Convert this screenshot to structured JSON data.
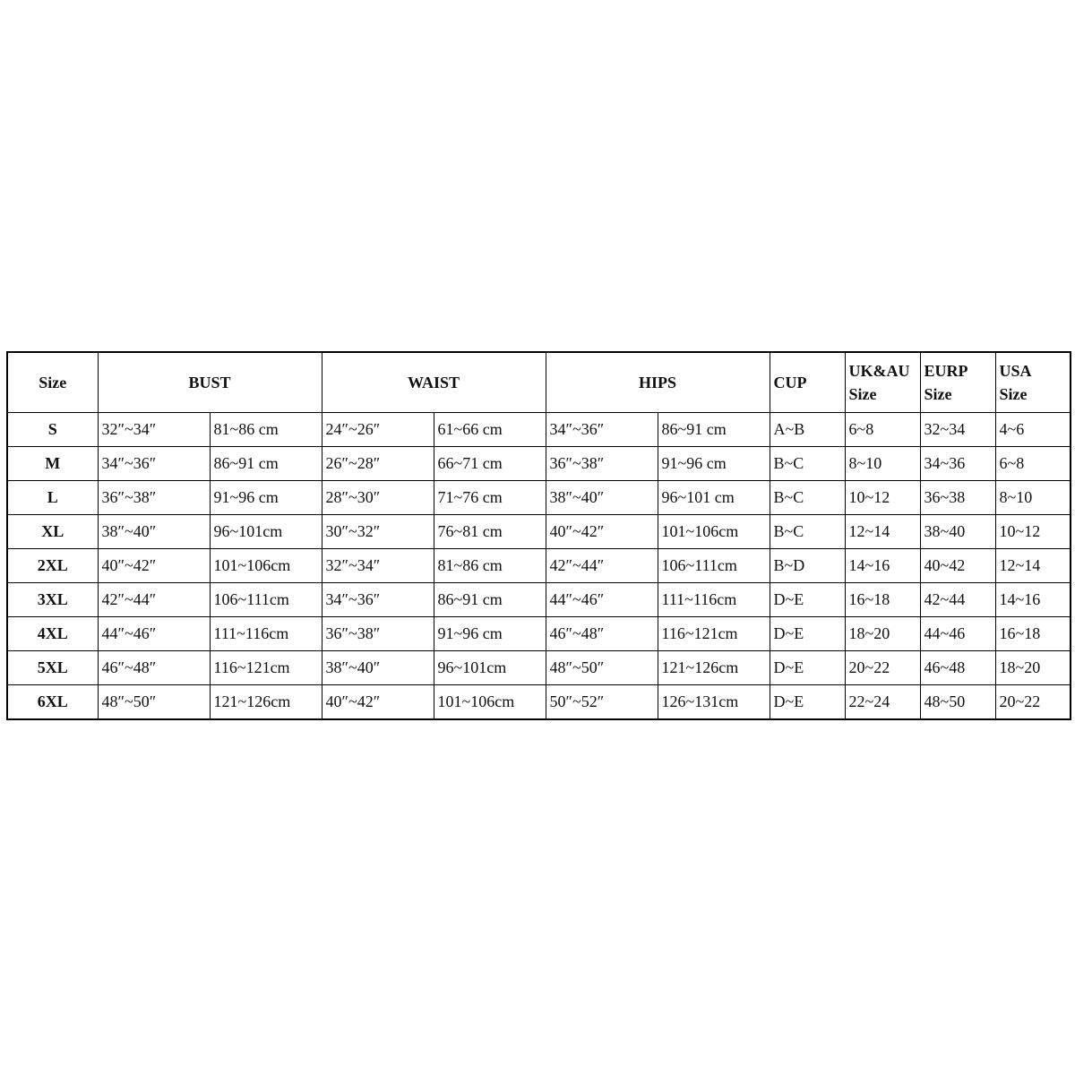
{
  "table": {
    "header": [
      "Size",
      "BUST",
      "WAIST",
      "HIPS",
      "CUP",
      "UK&AU\nSize",
      "EURP\nSize",
      "USA\nSize"
    ],
    "rows": [
      [
        "S",
        "32″~34″",
        "81~86 cm",
        "24″~26″",
        "61~66 cm",
        "34″~36″",
        "86~91 cm",
        "A~B",
        "6~8",
        "32~34",
        "4~6"
      ],
      [
        "M",
        "34″~36″",
        "86~91 cm",
        "26″~28″",
        "66~71 cm",
        "36″~38″",
        "91~96 cm",
        "B~C",
        "8~10",
        "34~36",
        "6~8"
      ],
      [
        "L",
        "36″~38″",
        "91~96 cm",
        "28″~30″",
        "71~76 cm",
        "38″~40″",
        "96~101 cm",
        "B~C",
        "10~12",
        "36~38",
        "8~10"
      ],
      [
        "XL",
        "38″~40″",
        "96~101cm",
        "30″~32″",
        "76~81 cm",
        "40″~42″",
        "101~106cm",
        "B~C",
        "12~14",
        "38~40",
        "10~12"
      ],
      [
        "2XL",
        "40″~42″",
        "101~106cm",
        "32″~34″",
        "81~86 cm",
        "42″~44″",
        "106~111cm",
        "B~D",
        "14~16",
        "40~42",
        "12~14"
      ],
      [
        "3XL",
        "42″~44″",
        "106~111cm",
        "34″~36″",
        "86~91 cm",
        "44″~46″",
        "111~116cm",
        "D~E",
        "16~18",
        "42~44",
        "14~16"
      ],
      [
        "4XL",
        "44″~46″",
        "111~116cm",
        "36″~38″",
        "91~96 cm",
        "46″~48″",
        "116~121cm",
        "D~E",
        "18~20",
        "44~46",
        "16~18"
      ],
      [
        "5XL",
        "46″~48″",
        "116~121cm",
        "38″~40″",
        "96~101cm",
        "48″~50″",
        "121~126cm",
        "D~E",
        "20~22",
        "46~48",
        "18~20"
      ],
      [
        "6XL",
        "48″~50″",
        "121~126cm",
        "40″~42″",
        "101~106cm",
        "50″~52″",
        "126~131cm",
        "D~E",
        "22~24",
        "48~50",
        "20~22"
      ]
    ]
  }
}
